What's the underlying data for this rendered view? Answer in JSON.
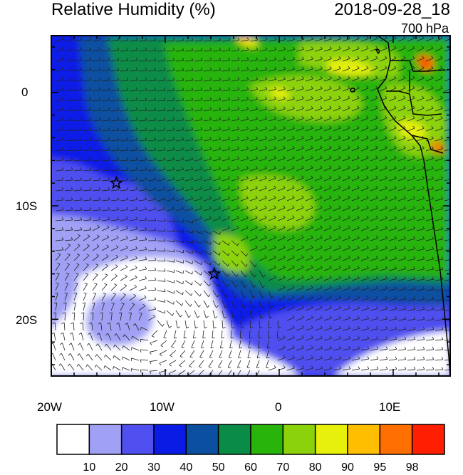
{
  "title_left": "Relative Humidity (%)",
  "title_right": "2018-09-28_18",
  "level_label": "700 hPa",
  "map": {
    "lon_range": [
      -20,
      15
    ],
    "lat_range": [
      -25,
      5
    ],
    "x_ticks": [
      "20W",
      "10W",
      "0",
      "10E"
    ],
    "y_ticks": [
      "0",
      "10S",
      "20S"
    ],
    "markers": [
      {
        "name": "star-marker-1",
        "lon": -14.3,
        "lat": -8.0
      },
      {
        "name": "star-marker-2",
        "lon": -5.7,
        "lat": -16.0
      }
    ]
  },
  "colorbar": {
    "labels": [
      "10",
      "20",
      "30",
      "40",
      "50",
      "60",
      "70",
      "80",
      "90",
      "95",
      "98"
    ],
    "colors": [
      "#ffffff",
      "#a0a0f5",
      "#5050f0",
      "#0a1be6",
      "#0a4fa0",
      "#0a8c46",
      "#28b40a",
      "#8cd20a",
      "#e6f00a",
      "#ffbe00",
      "#ff6e00",
      "#ff1e00"
    ]
  }
}
